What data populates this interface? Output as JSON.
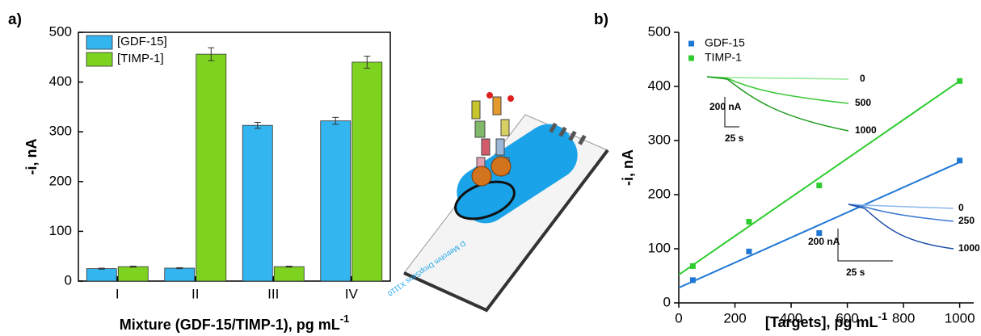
{
  "panel_labels": [
    "a)",
    "b)"
  ],
  "chart_data": [
    {
      "type": "bar",
      "ylabel": "-i, nA",
      "xlabel": "Mixture (GDF-15/TIMP-1), pg mL",
      "xlabel_superscript": "-1",
      "categories": [
        "I",
        "II",
        "III",
        "IV"
      ],
      "ylim": [
        0,
        500
      ],
      "yticks": [
        0,
        100,
        200,
        300,
        400,
        500
      ],
      "legend": "upper left",
      "series": [
        {
          "name": "[GDF-15]",
          "color": "#33b5f0",
          "values": [
            25,
            26,
            313,
            322
          ],
          "errors": [
            1,
            1,
            6,
            7
          ]
        },
        {
          "name": "[TIMP-1]",
          "color": "#7ed320",
          "values": [
            29,
            456,
            29,
            440
          ],
          "errors": [
            1,
            13,
            1,
            12
          ]
        }
      ]
    },
    {
      "type": "scatter",
      "ylabel": "-i, nA",
      "xlabel": "[Targets], pg mL",
      "xlabel_superscript": "-1",
      "xlim": [
        0,
        1050
      ],
      "xticks": [
        0,
        200,
        400,
        600,
        800,
        1000
      ],
      "ylim": [
        0,
        500
      ],
      "yticks": [
        0,
        100,
        200,
        300,
        400,
        500
      ],
      "legend": "upper left",
      "series": [
        {
          "name": "GDF-15",
          "color": "#1f77d4",
          "x": [
            50,
            250,
            500,
            1000
          ],
          "values": [
            42,
            95,
            129,
            263
          ],
          "fit": {
            "x": [
              0,
              1000
            ],
            "values": [
              28,
              260
            ]
          }
        },
        {
          "name": "TIMP-1",
          "color": "#2ecc2e",
          "x": [
            50,
            250,
            500,
            1000
          ],
          "values": [
            68,
            150,
            217,
            410
          ],
          "fit": {
            "x": [
              0,
              1000
            ],
            "values": [
              52,
              410
            ]
          }
        }
      ]
    }
  ],
  "insets": [
    {
      "curve_labels": [
        "0",
        "500",
        "1000"
      ],
      "current_scale": "200 nA",
      "time_scale": "25 s"
    },
    {
      "curve_labels": [
        "0",
        "250",
        "1000"
      ],
      "current_scale": "200 nA",
      "time_scale": "25 s"
    }
  ],
  "illustration": {
    "electrode_text": "D Metrohm DropSens X1110"
  }
}
